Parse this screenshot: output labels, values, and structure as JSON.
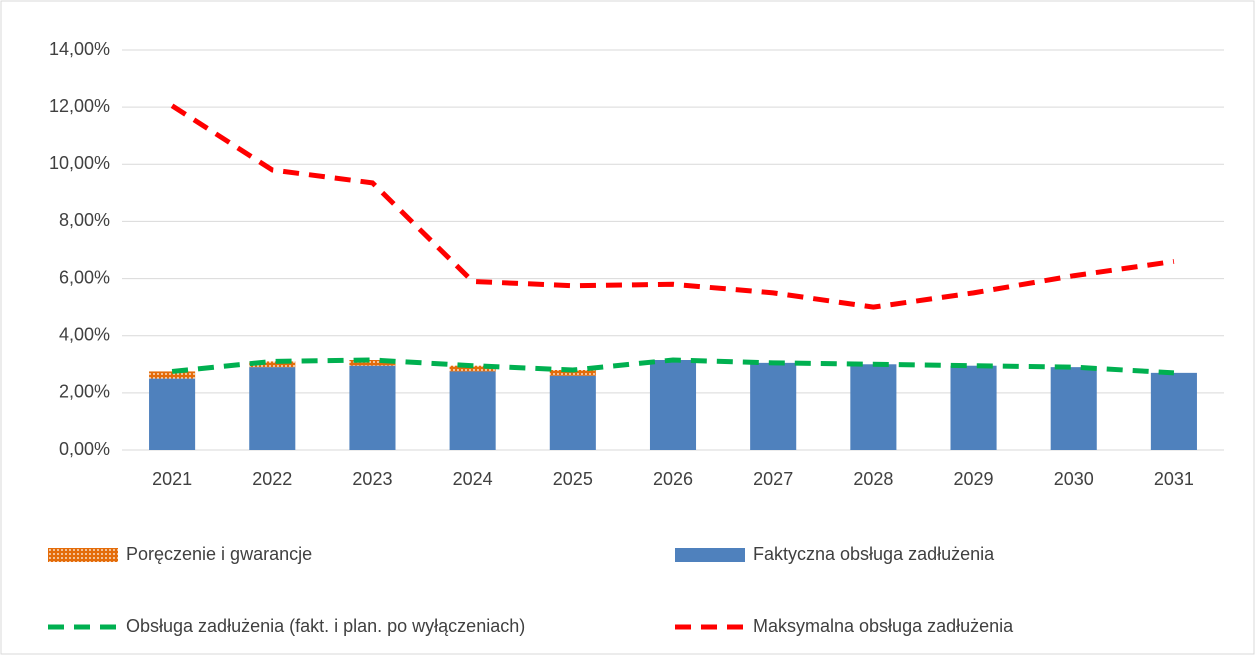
{
  "chart_data": {
    "type": "combo",
    "categories": [
      "2021",
      "2022",
      "2023",
      "2024",
      "2025",
      "2026",
      "2027",
      "2028",
      "2029",
      "2030",
      "2031"
    ],
    "series": [
      {
        "name": "Poręczenie i gwarancje",
        "type": "bar",
        "color": "#e46c0a",
        "values": [
          0.25,
          0.2,
          0.2,
          0.2,
          0.2,
          0,
          0,
          0,
          0,
          0,
          0
        ]
      },
      {
        "name": "Faktyczna obsługa zadłużenia",
        "type": "bar",
        "color": "#4f81bd",
        "values": [
          2.5,
          2.9,
          2.95,
          2.75,
          2.6,
          3.15,
          3.05,
          3.0,
          2.95,
          2.9,
          2.7
        ]
      },
      {
        "name": "Obsługa zadłużenia (fakt. i plan. po wyłączeniach)",
        "type": "line",
        "color": "#00b050",
        "values": [
          2.75,
          3.1,
          3.15,
          2.95,
          2.8,
          3.15,
          3.05,
          3.0,
          2.95,
          2.9,
          2.7
        ]
      },
      {
        "name": "Maksymalna obsługa zadłużenia",
        "type": "line",
        "color": "#ff0000",
        "values": [
          12.05,
          9.8,
          9.35,
          5.9,
          5.75,
          5.8,
          5.5,
          5.0,
          5.5,
          6.1,
          6.6
        ]
      }
    ],
    "stacked": true,
    "ylim": [
      0,
      14
    ],
    "yticks": [
      {
        "value": 0,
        "label": "0,00%"
      },
      {
        "value": 2,
        "label": "2,00%"
      },
      {
        "value": 4,
        "label": "4,00%"
      },
      {
        "value": 6,
        "label": "6,00%"
      },
      {
        "value": 8,
        "label": "8,00%"
      },
      {
        "value": 10,
        "label": "10,00%"
      },
      {
        "value": 12,
        "label": "12,00%"
      },
      {
        "value": 14,
        "label": "14,00%"
      }
    ],
    "grid": true,
    "legend": "bottom"
  }
}
